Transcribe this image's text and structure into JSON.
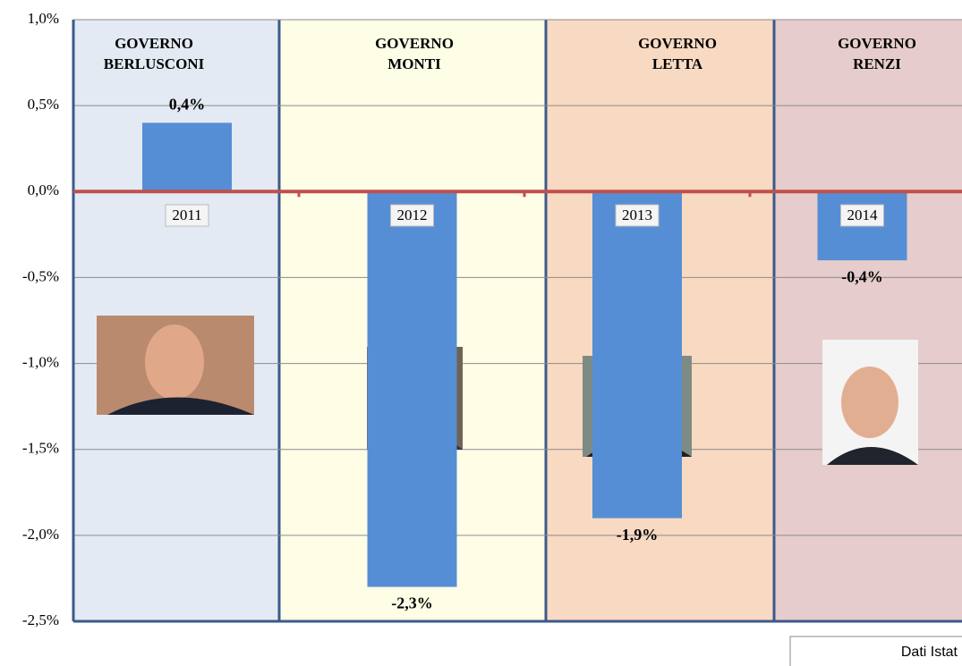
{
  "chart_data": {
    "type": "bar",
    "categories": [
      "2011",
      "2012",
      "2013",
      "2014"
    ],
    "values": [
      0.4,
      -2.3,
      -1.9,
      -0.4
    ],
    "value_labels": [
      "0,4%",
      "-2,3%",
      "-1,9%",
      "-0,4%"
    ],
    "color": "#558ed5",
    "ylim": [
      -2.5,
      1.0
    ],
    "yticks": [
      {
        "value": -2.5,
        "label": "-2,5%"
      },
      {
        "value": -2.0,
        "label": "-2,0%"
      },
      {
        "value": -1.5,
        "label": "-1,5%"
      },
      {
        "value": -1.0,
        "label": "-1,0%"
      },
      {
        "value": -0.5,
        "label": "-0,5%"
      },
      {
        "value": 0,
        "label": "0,0%"
      },
      {
        "value": 0.5,
        "label": "0,5%"
      },
      {
        "value": 1.0,
        "label": "1,0%"
      }
    ],
    "grid": true,
    "governments": [
      {
        "name": [
          "GOVERNO",
          "BERLUSCONI"
        ],
        "color": "#e3eaf4"
      },
      {
        "name": [
          "GOVERNO",
          "MONTI"
        ],
        "color": "#fefde6"
      },
      {
        "name": [
          "GOVERNO",
          "LETTA"
        ],
        "color": "#f8d9c2"
      },
      {
        "name": [
          "GOVERNO",
          "RENZI"
        ],
        "color": "#e6cccc"
      }
    ],
    "source": "Dati Istat"
  }
}
